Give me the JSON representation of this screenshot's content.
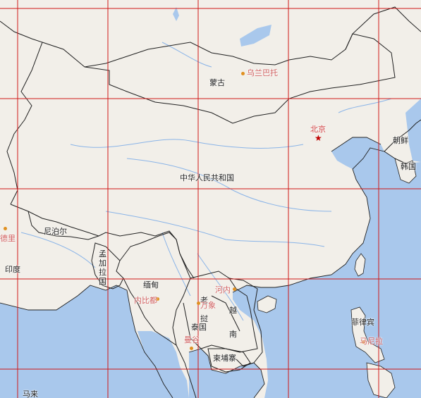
{
  "map": {
    "colors": {
      "land": "#f2efe9",
      "water": "#a9c8ec",
      "grid": "#d01818",
      "border": "#202020",
      "river": "#8ab4e8",
      "city_label": "#d06060",
      "capital_marker": "#c00000",
      "city_marker": "#e09020"
    },
    "countries": {
      "mongolia": "蒙古",
      "china": "中华人民共和国",
      "north_korea": "朝鲜",
      "south_korea": "韩国",
      "nepal": "尼泊尔",
      "india": "印度",
      "bangladesh": "孟加拉国",
      "myanmar": "缅甸",
      "laos": "老挝",
      "thailand": "泰国",
      "vietnam": "越南",
      "cambodia": "柬埔寨",
      "philippines": "菲律宾",
      "malaysia": "马来"
    },
    "cities": {
      "ulaanbaatar": "乌兰巴托",
      "beijing": "北京",
      "new_delhi": "德里",
      "naypyidaw": "内比都",
      "hanoi": "河内",
      "vientiane": "万象",
      "bangkok": "曼谷",
      "manila": "马尼拉"
    },
    "markers": {
      "capital_icon": "star-icon",
      "city_icon": "dot-icon"
    }
  }
}
